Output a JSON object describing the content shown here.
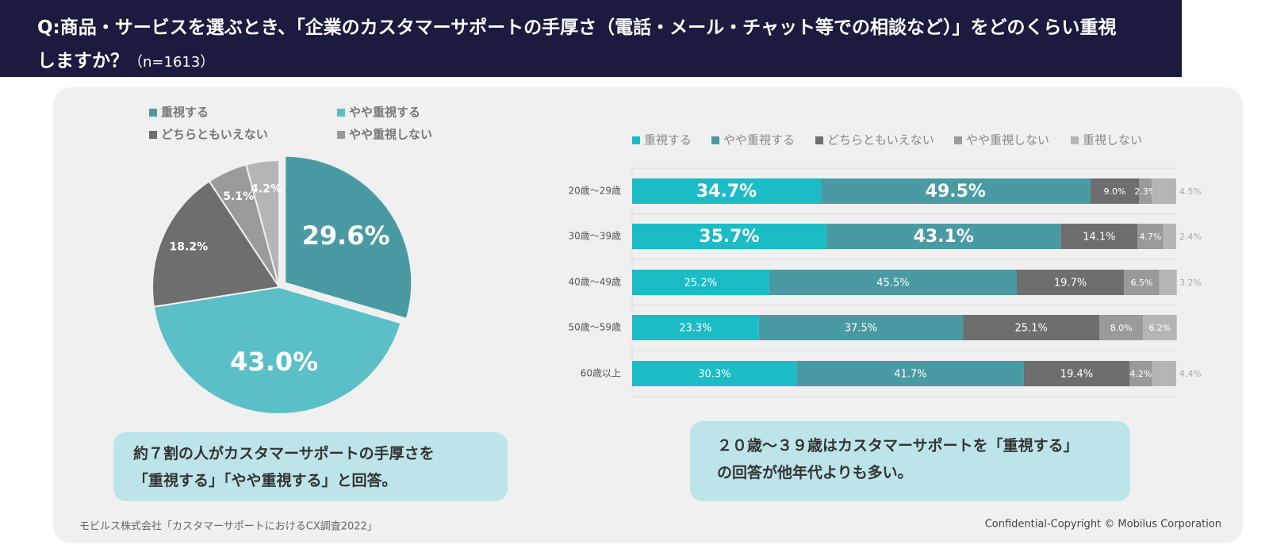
{
  "header": {
    "question": "Q:商品・サービスを選ぶとき、「企業のカスタマーサポートの手厚さ（電話・メール・チャット等での相談など）」をどのくらい重視しますか？",
    "sample": "（n=1613）"
  },
  "chart_data": [
    {
      "type": "pie",
      "categories": [
        "重視する",
        "やや重視する",
        "どちらともいえない",
        "やや重視しない",
        null
      ],
      "values": [
        29.6,
        43.0,
        18.2,
        5.1,
        4.2
      ],
      "value_labels": [
        "29.6%",
        "43.0%",
        "18.2%",
        "5.1%",
        "4.2%"
      ],
      "colors": [
        "#4a9aa3",
        "#5bbfc8",
        "#6e6e6e",
        "#9a9a9a",
        "#b5b5b5"
      ]
    },
    {
      "type": "stacked_bar_horizontal",
      "categories": [
        "20歳～29歳",
        "30歳～39歳",
        "40歳～49歳",
        "50歳～59歳",
        "60歳以上"
      ],
      "xlim": [
        0,
        100
      ],
      "series": [
        {
          "name": "重視する",
          "color": "#1bbcc6",
          "values": [
            34.7,
            35.7,
            25.2,
            23.3,
            30.3
          ],
          "value_labels": [
            "34.7%",
            "35.7%",
            "25.2%",
            "23.3%",
            "30.3%"
          ]
        },
        {
          "name": "やや重視する",
          "color": "#4a9aa3",
          "values": [
            49.5,
            43.1,
            45.5,
            37.5,
            41.7
          ],
          "value_labels": [
            "49.5%",
            "43.1%",
            "45.5%",
            "37.5%",
            "41.7%"
          ]
        },
        {
          "name": "どちらともいえない",
          "color": "#6e6e6e",
          "values": [
            9.0,
            14.1,
            19.7,
            25.1,
            19.4
          ],
          "value_labels": [
            "9.0%",
            "14.1%",
            "19.7%",
            "25.1%",
            "19.4%"
          ]
        },
        {
          "name": "やや重視しない",
          "color": "#9a9a9a",
          "values": [
            2.3,
            4.7,
            6.5,
            8.0,
            4.2
          ],
          "value_labels": [
            "2.3%",
            "4.7%",
            "6.5%",
            "8.0%",
            "4.2%"
          ]
        },
        {
          "name": "重視しない",
          "color": "#b5b5b5",
          "values": [
            4.5,
            2.4,
            3.2,
            6.2,
            4.4
          ],
          "value_labels": [
            "4.5%",
            "2.4%",
            "3.2%",
            "6.2%",
            "4.4%"
          ]
        }
      ]
    }
  ],
  "notes": [
    [
      "約７割の人がカスタマーサポートの手厚さを",
      "「重視する」「やや重視する」と回答。"
    ],
    [
      "２０歳～３９歳はカスタマーサポートを「重視する」",
      "の回答が他年代よりも多い。"
    ]
  ],
  "footer": {
    "source": "モビルス株式会社「カスタマーサポートにおけるCX調査2022」",
    "copyright": "Confidential-Copyright © Mobilus Corporation"
  }
}
